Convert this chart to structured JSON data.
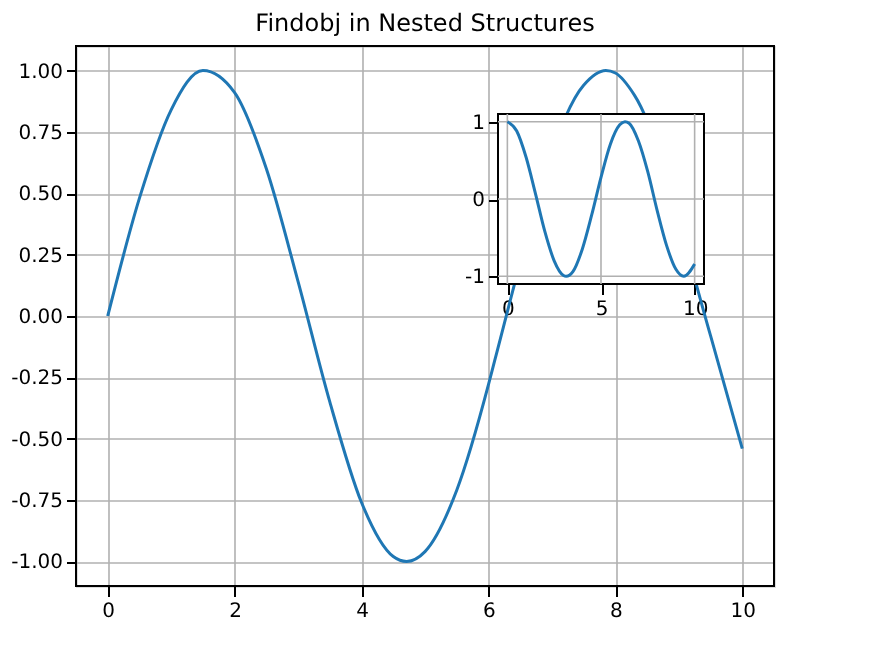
{
  "chart_data": [
    {
      "type": "line",
      "title": "Findobj in Nested Structures",
      "x": [
        0,
        0.5,
        1,
        1.5,
        2,
        2.5,
        3,
        3.5,
        4,
        4.5,
        4.71,
        5,
        5.5,
        6,
        6.1,
        7.5,
        7.85,
        8,
        8.3,
        9.5,
        10
      ],
      "series": [
        {
          "color": "#1f77b4",
          "values": [
            0,
            0.48,
            0.84,
            1.0,
            0.91,
            0.6,
            0.14,
            -0.35,
            -0.76,
            -0.98,
            -1.0,
            -0.96,
            -0.71,
            -0.28,
            -0.18,
            0.94,
            1.0,
            0.99,
            0.9,
            -0.08,
            -0.54
          ]
        }
      ],
      "xlim": [
        -0.5,
        10.5
      ],
      "ylim": [
        -1.1,
        1.1
      ],
      "xticks": [
        0,
        2,
        4,
        6,
        8,
        10
      ],
      "yticks": [
        {
          "value": -1,
          "label": "-1.00"
        },
        {
          "value": -0.75,
          "label": "-0.75"
        },
        {
          "value": -0.5,
          "label": "-0.50"
        },
        {
          "value": -0.25,
          "label": "-0.25"
        },
        {
          "value": 0,
          "label": "0.00"
        },
        {
          "value": 0.25,
          "label": "0.25"
        },
        {
          "value": 0.5,
          "label": "0.50"
        },
        {
          "value": 0.75,
          "label": "0.75"
        },
        {
          "value": 1,
          "label": "1.00"
        }
      ],
      "grid": true
    },
    {
      "type": "line",
      "x": [
        0,
        0.5,
        1,
        1.5,
        2,
        2.5,
        3,
        3.14,
        3.5,
        4,
        4.5,
        5,
        5.5,
        6,
        6.28,
        6.5,
        7,
        7.5,
        8,
        8.5,
        9,
        9.42,
        10
      ],
      "series": [
        {
          "color": "#1f77b4",
          "values": [
            1,
            0.88,
            0.54,
            0.07,
            -0.42,
            -0.8,
            -0.99,
            -1.0,
            -0.94,
            -0.65,
            -0.21,
            0.28,
            0.71,
            0.96,
            1.0,
            0.98,
            0.75,
            0.35,
            -0.15,
            -0.6,
            -0.91,
            -1.0,
            -0.84
          ]
        }
      ],
      "xlim": [
        -0.5,
        10.5
      ],
      "ylim": [
        -1.1,
        1.1
      ],
      "xticks": [
        0,
        5,
        10
      ],
      "yticks": [
        -1,
        0,
        1
      ],
      "grid": true
    }
  ]
}
